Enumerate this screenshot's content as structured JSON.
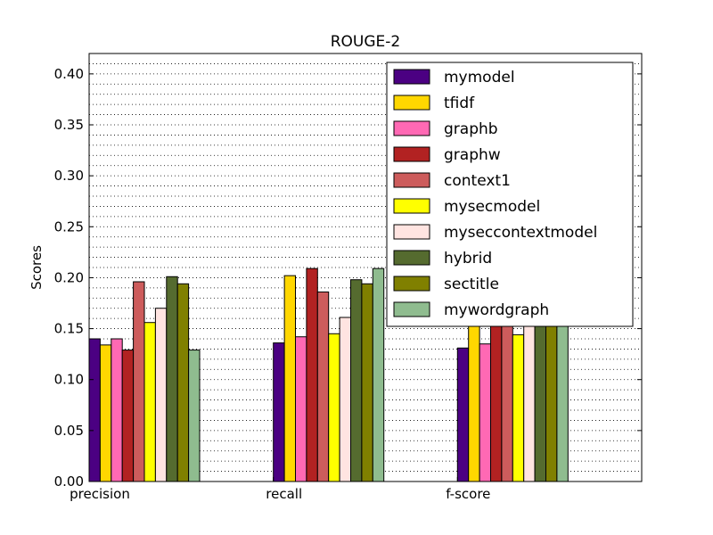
{
  "chart_data": {
    "type": "bar",
    "title": "ROUGE-2",
    "xlabel": "",
    "ylabel": "Scores",
    "ylim": [
      0,
      0.42
    ],
    "yticks": [
      "0.00",
      "0.05",
      "0.10",
      "0.15",
      "0.20",
      "0.25",
      "0.30",
      "0.35",
      "0.40"
    ],
    "minor_y_step": 0.01,
    "grid": true,
    "legend_position": "top-right",
    "categories": [
      "precision",
      "recall",
      "f-score"
    ],
    "series": [
      {
        "name": "mymodel",
        "color": "#4b0082",
        "values": [
          0.14,
          0.136,
          0.131
        ]
      },
      {
        "name": "tfidf",
        "color": "#ffd700",
        "values": [
          0.134,
          0.202,
          0.165
        ]
      },
      {
        "name": "graphb",
        "color": "#ff69b4",
        "values": [
          0.14,
          0.142,
          0.135
        ]
      },
      {
        "name": "graphw",
        "color": "#b22222",
        "values": [
          0.129,
          0.209,
          0.16
        ]
      },
      {
        "name": "context1",
        "color": "#cd5c5c",
        "values": [
          0.196,
          0.186,
          0.185
        ]
      },
      {
        "name": "mysecmodel",
        "color": "#ffff00",
        "values": [
          0.156,
          0.145,
          0.144
        ]
      },
      {
        "name": "myseccontextmodel",
        "color": "#ffe4e1",
        "values": [
          0.17,
          0.161,
          0.16
        ]
      },
      {
        "name": "hybrid",
        "color": "#556b2f",
        "values": [
          0.201,
          0.198,
          0.199
        ]
      },
      {
        "name": "sectitle",
        "color": "#808000",
        "values": [
          0.194,
          0.194,
          0.194
        ]
      },
      {
        "name": "mywordgraph",
        "color": "#8fbc8f",
        "values": [
          0.129,
          0.209,
          0.16
        ]
      }
    ]
  }
}
